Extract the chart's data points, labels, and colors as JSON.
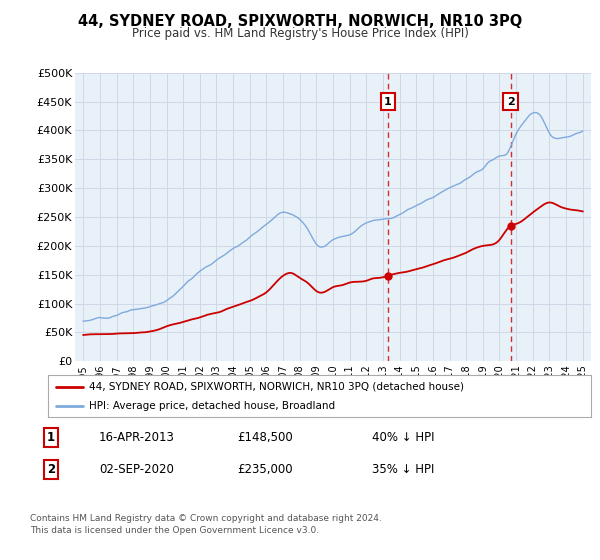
{
  "title": "44, SYDNEY ROAD, SPIXWORTH, NORWICH, NR10 3PQ",
  "subtitle": "Price paid vs. HM Land Registry's House Price Index (HPI)",
  "background_color": "#ffffff",
  "plot_bg_color": "#e8f0f8",
  "grid_color": "#d0d8e8",
  "hpi_color": "#7faadd",
  "price_color": "#cc0000",
  "sale1_date_x": 2013.29,
  "sale1_price": 148500,
  "sale1_label": "1",
  "sale2_date_x": 2020.67,
  "sale2_price": 235000,
  "sale2_label": "2",
  "ylim_min": 0,
  "ylim_max": 500000,
  "xlim_min": 1994.5,
  "xlim_max": 2025.5,
  "ytick_values": [
    0,
    50000,
    100000,
    150000,
    200000,
    250000,
    300000,
    350000,
    400000,
    450000,
    500000
  ],
  "ytick_labels": [
    "£0",
    "£50K",
    "£100K",
    "£150K",
    "£200K",
    "£250K",
    "£300K",
    "£350K",
    "£400K",
    "£450K",
    "£500K"
  ],
  "xtick_years": [
    1995,
    1996,
    1997,
    1998,
    1999,
    2000,
    2001,
    2002,
    2003,
    2004,
    2005,
    2006,
    2007,
    2008,
    2009,
    2010,
    2011,
    2012,
    2013,
    2014,
    2015,
    2016,
    2017,
    2018,
    2019,
    2020,
    2021,
    2022,
    2023,
    2024,
    2025
  ],
  "legend_line1": "44, SYDNEY ROAD, SPIXWORTH, NORWICH, NR10 3PQ (detached house)",
  "legend_line2": "HPI: Average price, detached house, Broadland",
  "annotation1_date": "16-APR-2013",
  "annotation1_price": "£148,500",
  "annotation1_hpi": "40% ↓ HPI",
  "annotation2_date": "02-SEP-2020",
  "annotation2_price": "£235,000",
  "annotation2_hpi": "35% ↓ HPI",
  "footer": "Contains HM Land Registry data © Crown copyright and database right 2024.\nThis data is licensed under the Open Government Licence v3.0."
}
